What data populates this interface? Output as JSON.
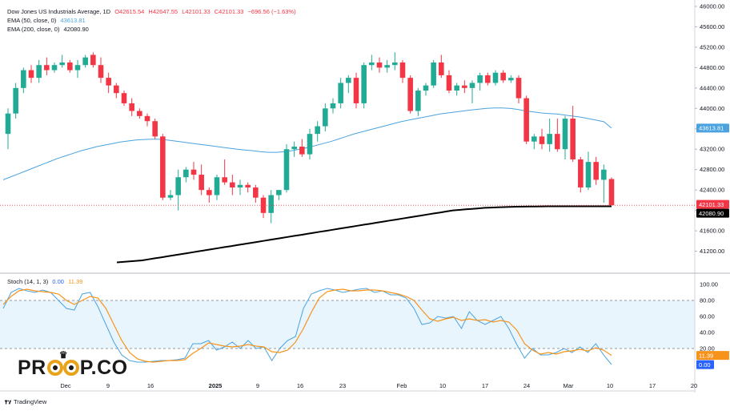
{
  "legend": {
    "symbol": "Dow Jones US Industrials Average, 1D",
    "ohlc": {
      "o": "O42615.54",
      "h": "H42647.55",
      "l": "L42101.33",
      "c": "C42101.33",
      "chg": "−696.56 (−1.63%)"
    },
    "ema50": {
      "label": "EMA (50, close, 0)",
      "value": "43613.81"
    },
    "ema200": {
      "label": "EMA (200, close, 0)",
      "value": "42080.90"
    },
    "stoch": {
      "label": "Stoch (14, 1, 3)",
      "k": "0.00",
      "d": "11.39"
    }
  },
  "branding": {
    "logo_left": "PR",
    "logo_right": "P.CO",
    "footer": "TradingView"
  },
  "colors": {
    "up": "#22ab94",
    "down": "#f23645",
    "ema50": "#4aa3df",
    "ema200": "#000000",
    "stoch_k": "#4aa3df",
    "stoch_d": "#f7931a",
    "band": "#e3f2fd"
  },
  "chart_data": [
    {
      "type": "candlestick",
      "title": "Dow Jones US Industrials Average, 1D",
      "ylim": [
        40800,
        46000
      ],
      "y_ticks": [
        "46000.00",
        "45600.00",
        "45200.00",
        "44800.00",
        "44400.00",
        "44000.00",
        "43600.00",
        "43200.00",
        "42800.00",
        "42400.00",
        "42000.00",
        "41600.00",
        "41200.00"
      ],
      "x_labels": [
        "Dec",
        "9",
        "16",
        "2025",
        "9",
        "16",
        "23",
        "Feb",
        "10",
        "17",
        "24",
        "Mar",
        "10",
        "17",
        "20"
      ],
      "price_labels": {
        "last": "42101.33",
        "ema50": "43613.81",
        "ema200": "42080.90"
      },
      "candles": [
        {
          "o": 43500,
          "h": 44000,
          "l": 43200,
          "c": 43900
        },
        {
          "o": 43900,
          "h": 44500,
          "l": 43800,
          "c": 44400
        },
        {
          "o": 44400,
          "h": 44800,
          "l": 44300,
          "c": 44750
        },
        {
          "o": 44750,
          "h": 44850,
          "l": 44500,
          "c": 44600
        },
        {
          "o": 44600,
          "h": 44950,
          "l": 44500,
          "c": 44850
        },
        {
          "o": 44850,
          "h": 45000,
          "l": 44650,
          "c": 44750
        },
        {
          "o": 44750,
          "h": 44900,
          "l": 44700,
          "c": 44850
        },
        {
          "o": 44850,
          "h": 45050,
          "l": 44800,
          "c": 44900
        },
        {
          "o": 44900,
          "h": 44950,
          "l": 44700,
          "c": 44750
        },
        {
          "o": 44750,
          "h": 44950,
          "l": 44600,
          "c": 44850
        },
        {
          "o": 44850,
          "h": 45050,
          "l": 44800,
          "c": 45000
        },
        {
          "o": 45050,
          "h": 45100,
          "l": 44800,
          "c": 44850
        },
        {
          "o": 44850,
          "h": 45000,
          "l": 44500,
          "c": 44600
        },
        {
          "o": 44600,
          "h": 44700,
          "l": 44300,
          "c": 44450
        },
        {
          "o": 44450,
          "h": 44500,
          "l": 44200,
          "c": 44300
        },
        {
          "o": 44300,
          "h": 44350,
          "l": 44050,
          "c": 44100
        },
        {
          "o": 44100,
          "h": 44200,
          "l": 43850,
          "c": 43950
        },
        {
          "o": 43950,
          "h": 44000,
          "l": 43800,
          "c": 43850
        },
        {
          "o": 43850,
          "h": 43900,
          "l": 43650,
          "c": 43750
        },
        {
          "o": 43750,
          "h": 43800,
          "l": 43400,
          "c": 43450
        },
        {
          "o": 43450,
          "h": 43500,
          "l": 42200,
          "c": 42250
        },
        {
          "o": 42250,
          "h": 42400,
          "l": 42200,
          "c": 42300
        },
        {
          "o": 42300,
          "h": 42800,
          "l": 42000,
          "c": 42650
        },
        {
          "o": 42650,
          "h": 42850,
          "l": 42550,
          "c": 42800
        },
        {
          "o": 42800,
          "h": 42950,
          "l": 42600,
          "c": 42700
        },
        {
          "o": 42700,
          "h": 42900,
          "l": 42300,
          "c": 42400
        },
        {
          "o": 42400,
          "h": 42450,
          "l": 42150,
          "c": 42300
        },
        {
          "o": 42300,
          "h": 42700,
          "l": 42200,
          "c": 42650
        },
        {
          "o": 42650,
          "h": 43000,
          "l": 42500,
          "c": 42550
        },
        {
          "o": 42550,
          "h": 42700,
          "l": 42300,
          "c": 42450
        },
        {
          "o": 42450,
          "h": 42600,
          "l": 42300,
          "c": 42500
        },
        {
          "o": 42500,
          "h": 42550,
          "l": 42350,
          "c": 42450
        },
        {
          "o": 42450,
          "h": 42500,
          "l": 42150,
          "c": 42250
        },
        {
          "o": 42250,
          "h": 42300,
          "l": 41850,
          "c": 41950
        },
        {
          "o": 41950,
          "h": 42400,
          "l": 41750,
          "c": 42300
        },
        {
          "o": 42300,
          "h": 42400,
          "l": 42200,
          "c": 42400
        },
        {
          "o": 42400,
          "h": 43300,
          "l": 42350,
          "c": 43200
        },
        {
          "o": 43200,
          "h": 43350,
          "l": 43050,
          "c": 43250
        },
        {
          "o": 43250,
          "h": 43400,
          "l": 43050,
          "c": 43100
        },
        {
          "o": 43100,
          "h": 43600,
          "l": 43000,
          "c": 43500
        },
        {
          "o": 43500,
          "h": 43750,
          "l": 43350,
          "c": 43650
        },
        {
          "o": 43650,
          "h": 44100,
          "l": 43550,
          "c": 44000
        },
        {
          "o": 44000,
          "h": 44200,
          "l": 43900,
          "c": 44100
        },
        {
          "o": 44100,
          "h": 44600,
          "l": 44000,
          "c": 44500
        },
        {
          "o": 44500,
          "h": 44650,
          "l": 44300,
          "c": 44600
        },
        {
          "o": 44600,
          "h": 44700,
          "l": 44000,
          "c": 44100
        },
        {
          "o": 44100,
          "h": 44900,
          "l": 44000,
          "c": 44850
        },
        {
          "o": 44850,
          "h": 45050,
          "l": 44750,
          "c": 44900
        },
        {
          "o": 44900,
          "h": 45000,
          "l": 44700,
          "c": 44800
        },
        {
          "o": 44800,
          "h": 44950,
          "l": 44700,
          "c": 44850
        },
        {
          "o": 44850,
          "h": 45100,
          "l": 44750,
          "c": 44900
        },
        {
          "o": 44900,
          "h": 44950,
          "l": 44500,
          "c": 44600
        },
        {
          "o": 44600,
          "h": 44650,
          "l": 43900,
          "c": 43950
        },
        {
          "o": 43950,
          "h": 44400,
          "l": 43850,
          "c": 44350
        },
        {
          "o": 44350,
          "h": 44500,
          "l": 44250,
          "c": 44450
        },
        {
          "o": 44450,
          "h": 44950,
          "l": 44400,
          "c": 44900
        },
        {
          "o": 44900,
          "h": 45050,
          "l": 44600,
          "c": 44650
        },
        {
          "o": 44650,
          "h": 44750,
          "l": 44300,
          "c": 44350
        },
        {
          "o": 44350,
          "h": 44500,
          "l": 44250,
          "c": 44450
        },
        {
          "o": 44450,
          "h": 44550,
          "l": 44300,
          "c": 44400
        },
        {
          "o": 44400,
          "h": 44550,
          "l": 44100,
          "c": 44500
        },
        {
          "o": 44500,
          "h": 44700,
          "l": 44350,
          "c": 44650
        },
        {
          "o": 44650,
          "h": 44700,
          "l": 44450,
          "c": 44500
        },
        {
          "o": 44500,
          "h": 44750,
          "l": 44450,
          "c": 44700
        },
        {
          "o": 44700,
          "h": 44750,
          "l": 44500,
          "c": 44550
        },
        {
          "o": 44550,
          "h": 44650,
          "l": 44500,
          "c": 44600
        },
        {
          "o": 44600,
          "h": 44650,
          "l": 44100,
          "c": 44200
        },
        {
          "o": 44200,
          "h": 44250,
          "l": 43300,
          "c": 43350
        },
        {
          "o": 43350,
          "h": 43500,
          "l": 43200,
          "c": 43450
        },
        {
          "o": 43450,
          "h": 43600,
          "l": 43200,
          "c": 43300
        },
        {
          "o": 43300,
          "h": 43800,
          "l": 43150,
          "c": 43500
        },
        {
          "o": 43500,
          "h": 43800,
          "l": 43150,
          "c": 43200
        },
        {
          "o": 43200,
          "h": 43850,
          "l": 43000,
          "c": 43800
        },
        {
          "o": 43800,
          "h": 44050,
          "l": 42950,
          "c": 43000
        },
        {
          "o": 43000,
          "h": 43050,
          "l": 42350,
          "c": 42450
        },
        {
          "o": 42450,
          "h": 43150,
          "l": 42400,
          "c": 42950
        },
        {
          "o": 42950,
          "h": 43050,
          "l": 42500,
          "c": 42600
        },
        {
          "o": 42600,
          "h": 42900,
          "l": 42150,
          "c": 42800
        },
        {
          "o": 42615.54,
          "h": 42647.55,
          "l": 42101.33,
          "c": 42101.33
        }
      ],
      "ema50": [
        42600,
        42660,
        42720,
        42780,
        42840,
        42900,
        42960,
        43020,
        43070,
        43120,
        43170,
        43210,
        43250,
        43280,
        43310,
        43340,
        43360,
        43380,
        43390,
        43395,
        43395,
        43380,
        43360,
        43340,
        43320,
        43300,
        43280,
        43260,
        43240,
        43220,
        43200,
        43185,
        43170,
        43150,
        43140,
        43140,
        43150,
        43170,
        43200,
        43230,
        43270,
        43310,
        43350,
        43400,
        43450,
        43500,
        43540,
        43580,
        43620,
        43660,
        43700,
        43740,
        43770,
        43800,
        43830,
        43860,
        43890,
        43910,
        43930,
        43950,
        43970,
        43985,
        44000,
        44010,
        44010,
        44000,
        43980,
        43950,
        43930,
        43910,
        43900,
        43890,
        43870,
        43850,
        43830,
        43800,
        43770,
        43740,
        43613.81
      ],
      "ema200": [
        40980,
        40990,
        41000,
        41010,
        41020,
        41040,
        41060,
        41080,
        41100,
        41120,
        41140,
        41160,
        41180,
        41200,
        41220,
        41240,
        41260,
        41280,
        41300,
        41320,
        41340,
        41360,
        41380,
        41400,
        41420,
        41440,
        41460,
        41480,
        41500,
        41520,
        41540,
        41560,
        41580,
        41600,
        41620,
        41640,
        41660,
        41680,
        41700,
        41720,
        41740,
        41760,
        41780,
        41800,
        41820,
        41840,
        41860,
        41880,
        41900,
        41920,
        41940,
        41960,
        41980,
        42000,
        42010,
        42020,
        42030,
        42040,
        42050,
        42055,
        42060,
        42065,
        42070,
        42072,
        42074,
        42076,
        42078,
        42079,
        42080,
        42080.5,
        42080.9,
        42080.9,
        42080.9,
        42080.9,
        42080.9,
        42080.9,
        42080.9,
        42080.9,
        42080.9
      ]
    },
    {
      "type": "line",
      "title": "Stoch (14, 1, 3)",
      "ylim": [
        0,
        100
      ],
      "y_ticks": [
        "100.00",
        "80.00",
        "60.00",
        "40.00",
        "20.00"
      ],
      "band": [
        20,
        80
      ],
      "series": [
        {
          "name": "%K",
          "values": [
            70,
            90,
            95,
            92,
            90,
            93,
            90,
            80,
            70,
            68,
            88,
            90,
            72,
            50,
            28,
            12,
            5,
            3,
            3,
            4,
            5,
            5,
            6,
            8,
            26,
            26,
            30,
            18,
            22,
            28,
            20,
            30,
            20,
            22,
            5,
            20,
            30,
            35,
            70,
            88,
            92,
            95,
            93,
            90,
            92,
            94,
            95,
            90,
            92,
            87,
            87,
            83,
            70,
            50,
            52,
            60,
            58,
            60,
            45,
            66,
            55,
            50,
            55,
            60,
            45,
            25,
            8,
            20,
            12,
            12,
            15,
            20,
            15,
            22,
            15,
            26,
            12,
            0
          ]
        },
        {
          "name": "%D",
          "values": [
            75,
            85,
            92,
            94,
            92,
            91,
            90,
            88,
            80,
            75,
            80,
            85,
            83,
            70,
            50,
            30,
            15,
            7,
            4,
            3,
            4,
            5,
            5,
            6,
            14,
            20,
            27,
            25,
            23,
            22,
            23,
            25,
            23,
            22,
            16,
            15,
            18,
            28,
            45,
            65,
            83,
            91,
            93,
            94,
            92,
            92,
            93,
            93,
            92,
            90,
            88,
            85,
            80,
            68,
            57,
            54,
            57,
            59,
            55,
            57,
            55,
            56,
            53,
            55,
            53,
            43,
            26,
            18,
            13,
            15,
            13,
            16,
            17,
            19,
            17,
            21,
            18,
            11.39
          ]
        }
      ]
    }
  ]
}
